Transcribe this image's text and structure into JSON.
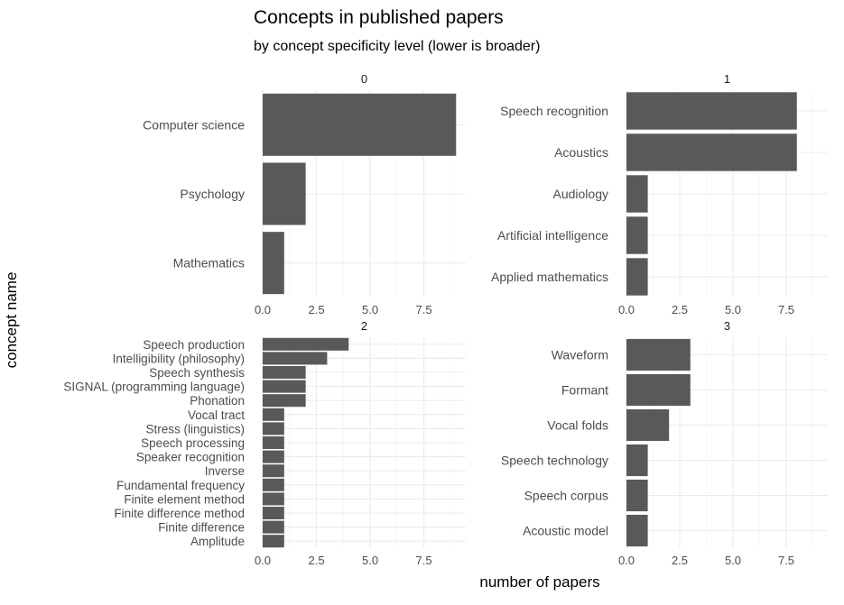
{
  "chart_data": {
    "type": "bar",
    "orientation": "horizontal",
    "title": "Concepts in published papers",
    "subtitle": "by concept specificity level (lower is broader)",
    "xlabel": "number of papers",
    "ylabel": "concept name",
    "xlim": [
      0,
      9.45
    ],
    "xticks": [
      0,
      2.5,
      5,
      7.5
    ],
    "xtick_labels": [
      "0.0",
      "2.5",
      "5.0",
      "7.5"
    ],
    "grid": true,
    "bar_color": "#595959",
    "facets": [
      {
        "label": "0",
        "categories": [
          "Computer science",
          "Psychology",
          "Mathematics"
        ],
        "values": [
          9,
          2,
          1
        ]
      },
      {
        "label": "1",
        "categories": [
          "Speech recognition",
          "Acoustics",
          "Audiology",
          "Artificial intelligence",
          "Applied mathematics"
        ],
        "values": [
          8,
          8,
          1,
          1,
          1
        ]
      },
      {
        "label": "2",
        "categories": [
          "Speech production",
          "Intelligibility (philosophy)",
          "Speech synthesis",
          "SIGNAL (programming language)",
          "Phonation",
          "Vocal tract",
          "Stress (linguistics)",
          "Speech processing",
          "Speaker recognition",
          "Inverse",
          "Fundamental frequency",
          "Finite element method",
          "Finite difference method",
          "Finite difference",
          "Amplitude"
        ],
        "values": [
          4,
          3,
          2,
          2,
          2,
          1,
          1,
          1,
          1,
          1,
          1,
          1,
          1,
          1,
          1
        ]
      },
      {
        "label": "3",
        "categories": [
          "Waveform",
          "Formant",
          "Vocal folds",
          "Speech technology",
          "Speech corpus",
          "Acoustic model"
        ],
        "values": [
          3,
          3,
          2,
          1,
          1,
          1
        ]
      }
    ]
  }
}
